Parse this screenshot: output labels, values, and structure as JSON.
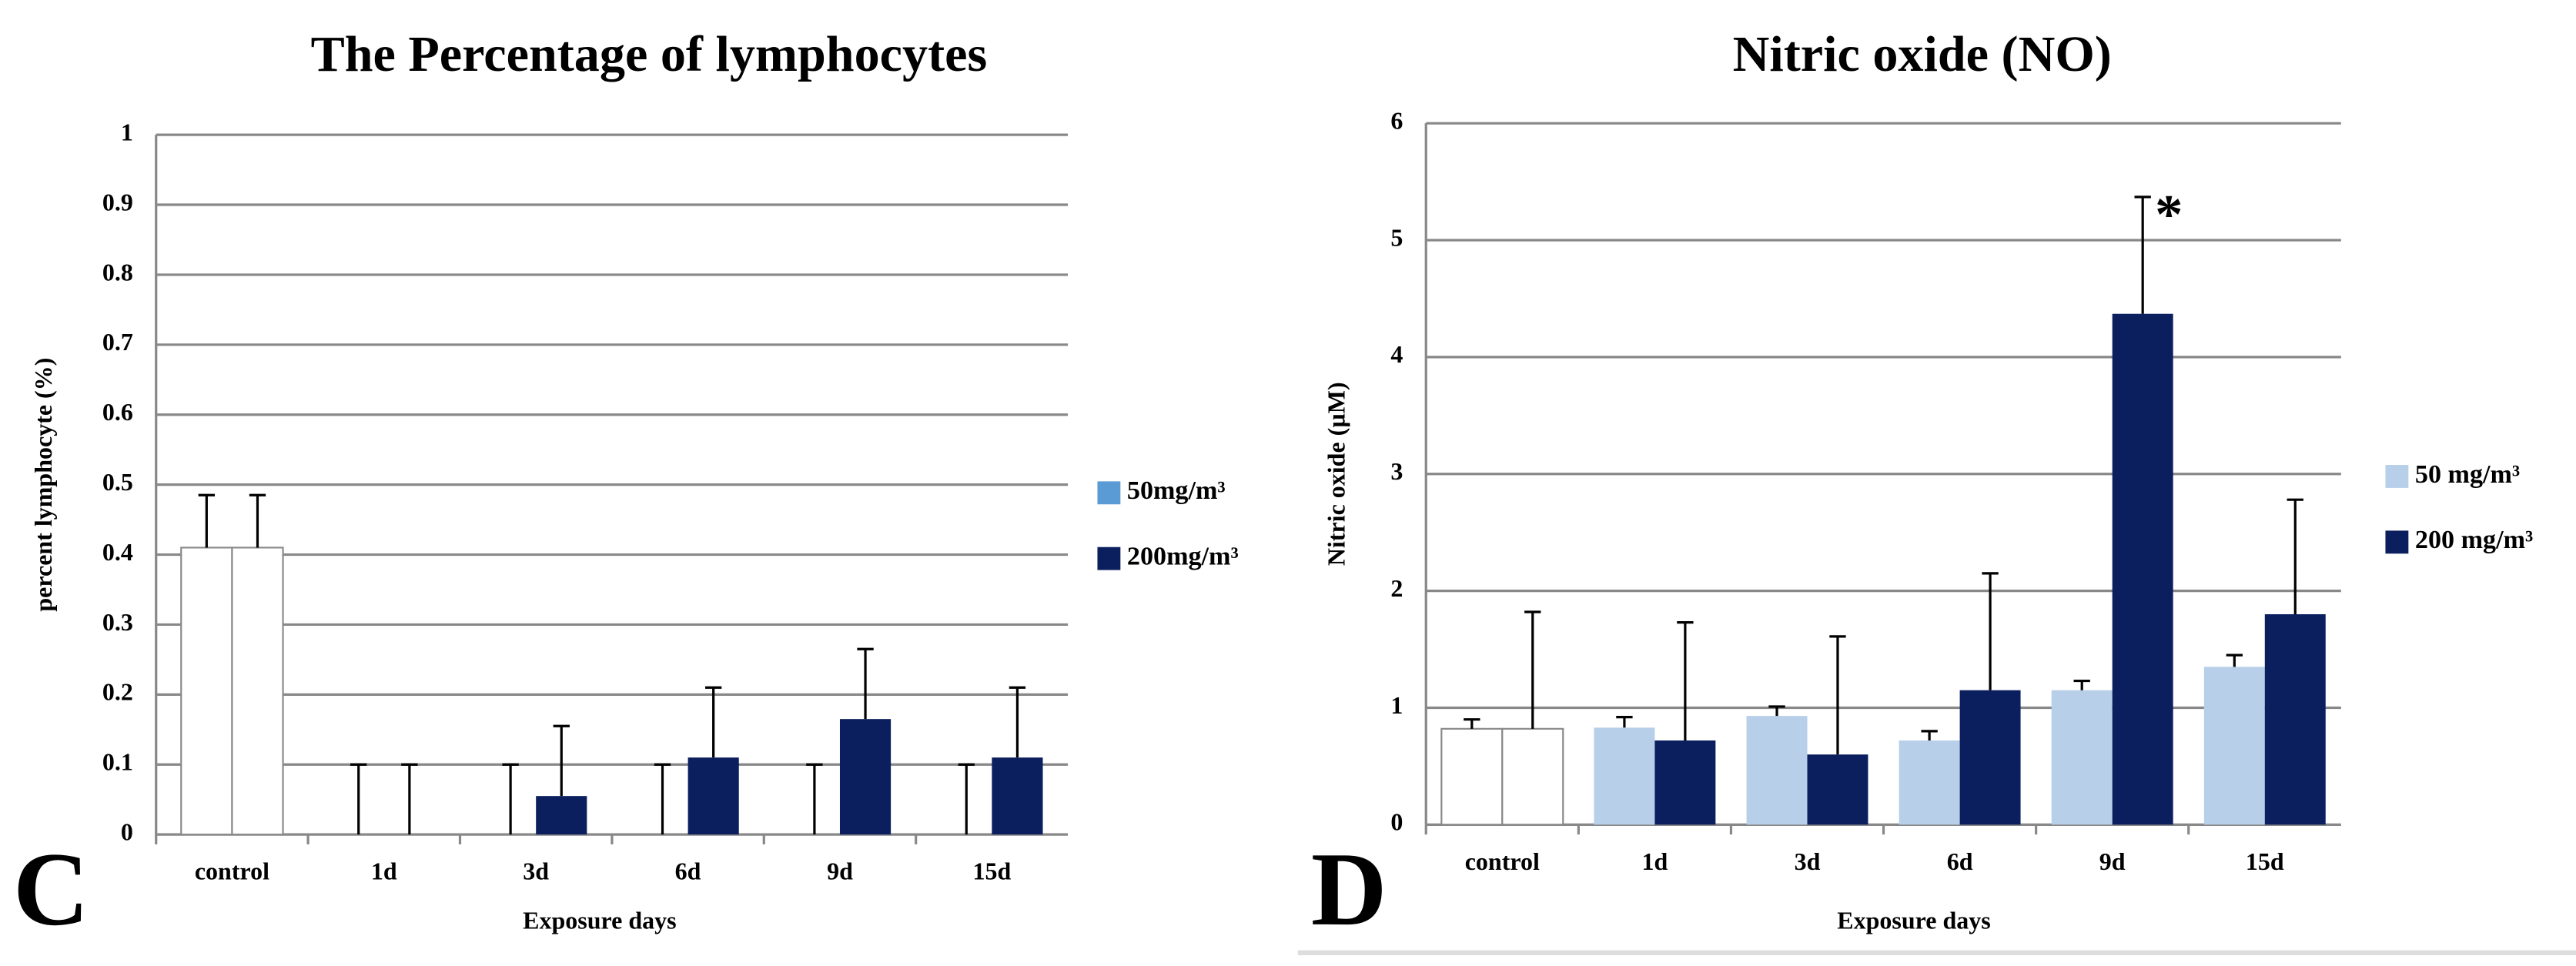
{
  "chart_data": [
    {
      "type": "bar",
      "title": "The Percentage of lymphocytes",
      "panel": "C",
      "x_label": "Exposure days",
      "y_label": "percent lymphocyte (%)",
      "categories": [
        "control",
        "1d",
        "3d",
        "6d",
        "9d",
        "15d"
      ],
      "first_category_color": "#ffffff",
      "series": [
        {
          "name": "50mg/m³",
          "color": "#5b9bd5",
          "values": [
            0.41,
            0,
            0,
            0,
            0,
            0
          ],
          "errors": [
            0.075,
            0.1,
            0.1,
            0.1,
            0.1,
            0.1
          ]
        },
        {
          "name": "200mg/m³",
          "color": "#0b1f5e",
          "values": [
            0.41,
            0,
            0.055,
            0.11,
            0.165,
            0.11
          ],
          "errors": [
            0.075,
            0.1,
            0.1,
            0.1,
            0.1,
            0.1
          ]
        }
      ],
      "ylim": [
        0,
        1
      ],
      "yticks": [
        0,
        0.1,
        0.2,
        0.3,
        0.4,
        0.5,
        0.6,
        0.7,
        0.8,
        0.9,
        1
      ],
      "grid": true,
      "legend": "right"
    },
    {
      "type": "bar",
      "title": "Nitric oxide (NO)",
      "panel": "D",
      "x_label": "Exposure days",
      "y_label": "Nitric oxide (µM)",
      "categories": [
        "control",
        "1d",
        "3d",
        "6d",
        "9d",
        "15d"
      ],
      "first_category_color": "#ffffff",
      "series": [
        {
          "name": "50 mg/m³",
          "color": "#b7cfe9",
          "values": [
            0.82,
            0.83,
            0.93,
            0.72,
            1.15,
            1.35
          ],
          "errors": [
            0.08,
            0.09,
            0.08,
            0.08,
            0.08,
            0.1
          ]
        },
        {
          "name": "200 mg/m³",
          "color": "#0b1f5e",
          "values": [
            0.82,
            0.72,
            0.6,
            1.15,
            4.37,
            1.8
          ],
          "errors": [
            1.0,
            1.01,
            1.01,
            1.0,
            1.0,
            0.98
          ]
        }
      ],
      "annotations": [
        {
          "text": "*",
          "category": 4,
          "series": 1
        }
      ],
      "ylim": [
        0,
        6
      ],
      "yticks": [
        0,
        1,
        2,
        3,
        4,
        5,
        6
      ],
      "grid": true,
      "legend": "right"
    }
  ]
}
